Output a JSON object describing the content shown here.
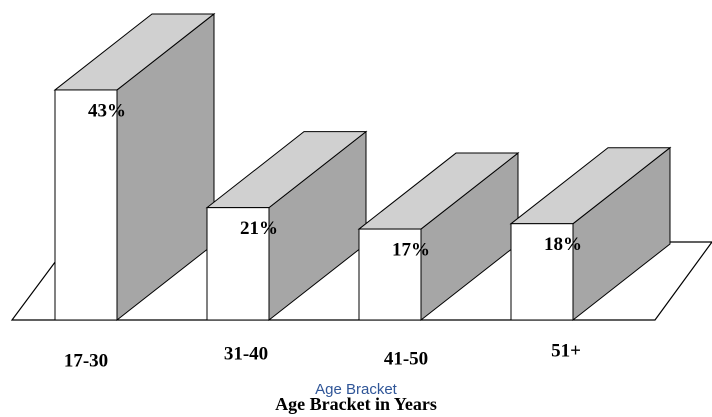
{
  "chart_data": {
    "type": "bar3d",
    "categories": [
      "17-30",
      "31-40",
      "41-50",
      "51+"
    ],
    "values": [
      43,
      21,
      17,
      18
    ],
    "value_labels": [
      "43%",
      "21%",
      "17%",
      "18%"
    ],
    "x_label": "Age Bracket",
    "x_label_2": "Age Bracket in Years",
    "colors": {
      "front": "#ffffff",
      "top": "#d0d0d0",
      "side": "#a6a6a6"
    }
  }
}
